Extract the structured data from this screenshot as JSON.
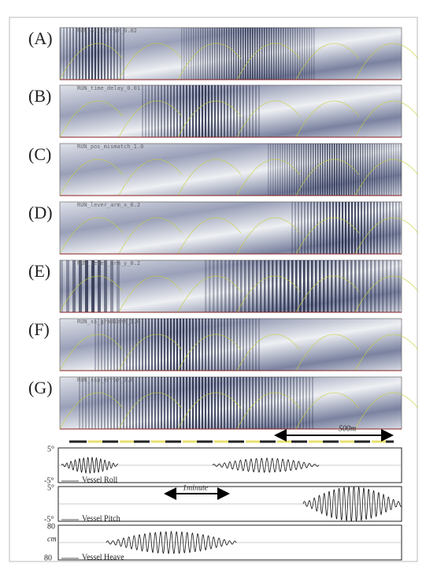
{
  "panels": [
    {
      "label": "(A)",
      "title": "RUN_att_error_0.02"
    },
    {
      "label": "(B)",
      "title": "RUN_time_delay_0.01"
    },
    {
      "label": "(C)",
      "title": "RUN_pos_mismatch_1.0"
    },
    {
      "label": "(D)",
      "title": "RUN_lever_arm_x_0.2"
    },
    {
      "label": "(E)",
      "title": "RUN_lever_arm_y_0.2"
    },
    {
      "label": "(F)",
      "title": "RUN_ss_gradient_1.0"
    },
    {
      "label": "(G)",
      "title": "RUN_ssp_error_3.0"
    }
  ],
  "scale_bar": "500m",
  "motion": {
    "roll": {
      "top": "5°",
      "bottom": "-5°",
      "name": "Vessel Roll"
    },
    "pitch": {
      "top": "5°",
      "bottom": "-5°",
      "name": "Vessel Pitch",
      "time_bar": "1minute"
    },
    "heave": {
      "top": "80",
      "unit": "cm",
      "bottom": "80",
      "name": "Vessel Heave"
    }
  }
}
